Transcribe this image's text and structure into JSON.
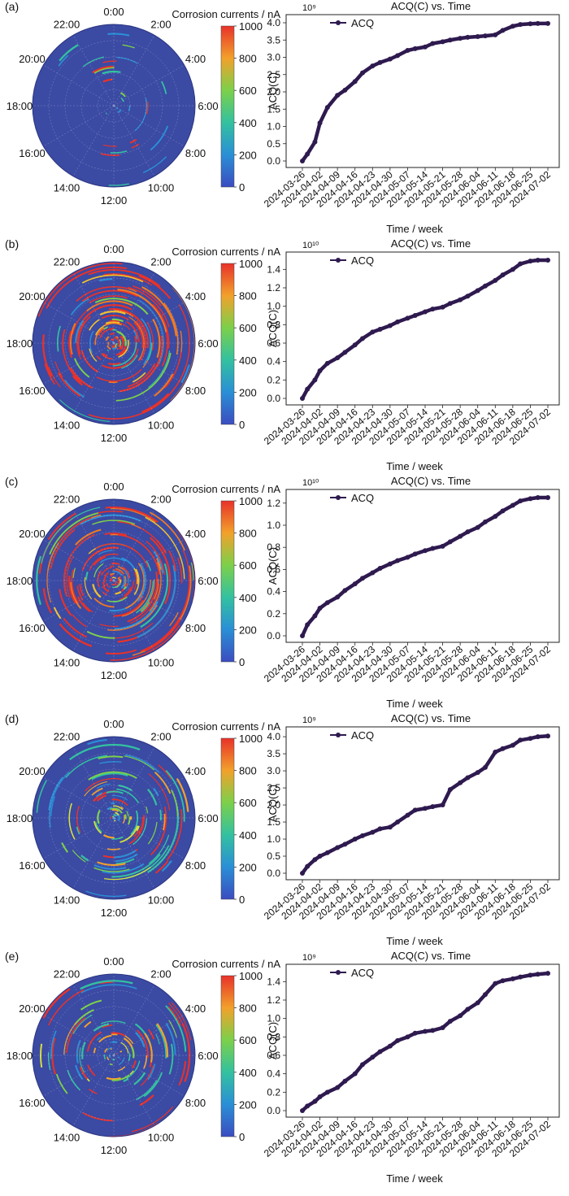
{
  "figure": {
    "panels": [
      {
        "label": "(a)",
        "polar": {
          "cbar_title": "Corrosion currents / nA",
          "cbar_ticks": [
            "0",
            "200",
            "400",
            "600",
            "800",
            "1000"
          ],
          "cbar_range": [
            0,
            1000
          ],
          "hour_labels": [
            "0:00",
            "2:00",
            "4:00",
            "6:00",
            "8:00",
            "10:00",
            "12:00",
            "14:00",
            "16:00",
            "18:00",
            "20:00",
            "22:00"
          ],
          "intensity": "low",
          "activity": [
            0.25,
            0.3,
            0.3,
            0.25,
            0.2,
            0.15,
            0.15,
            0.15,
            0.2,
            0.25,
            0.25,
            0.25
          ]
        },
        "line": {
          "title": "ACQ(C) vs. Time",
          "xlabel": "Time / week",
          "ylabel": "ACQ(C)",
          "exponent": "10⁹",
          "legend": "ACQ",
          "ylim": [
            0,
            4.0
          ],
          "yticks": [
            "0.0",
            "0.5",
            "1.0",
            "1.5",
            "2.0",
            "2.5",
            "3.0",
            "3.5",
            "4.0"
          ]
        }
      },
      {
        "label": "(b)",
        "polar": {
          "cbar_title": "Corrosion currents / nA",
          "cbar_ticks": [
            "0",
            "200",
            "400",
            "600",
            "800",
            "1000"
          ],
          "cbar_range": [
            0,
            1000
          ],
          "hour_labels": [
            "0:00",
            "2:00",
            "4:00",
            "6:00",
            "8:00",
            "10:00",
            "12:00",
            "14:00",
            "16:00",
            "18:00",
            "20:00",
            "22:00"
          ],
          "intensity": "high",
          "activity": [
            0.85,
            0.95,
            0.95,
            0.95,
            0.8,
            0.5,
            0.45,
            0.55,
            0.75,
            0.85,
            0.85,
            0.85
          ]
        },
        "line": {
          "title": "ACQ(C) vs. Time",
          "xlabel": "Time / week",
          "ylabel": "ACQ(C)",
          "exponent": "10¹⁰",
          "legend": "ACQ",
          "ylim": [
            0,
            1.5
          ],
          "yticks": [
            "0.0",
            "0.2",
            "0.4",
            "0.6",
            "0.8",
            "1.0",
            "1.2",
            "1.4"
          ]
        }
      },
      {
        "label": "(c)",
        "polar": {
          "cbar_title": "Corrosion currents / nA",
          "cbar_ticks": [
            "0",
            "200",
            "400",
            "600",
            "800",
            "1000"
          ],
          "cbar_range": [
            0,
            1000
          ],
          "hour_labels": [
            "0:00",
            "2:00",
            "4:00",
            "6:00",
            "8:00",
            "10:00",
            "12:00",
            "14:00",
            "16:00",
            "18:00",
            "20:00",
            "22:00"
          ],
          "intensity": "high",
          "activity": [
            0.8,
            0.9,
            0.9,
            0.85,
            0.7,
            0.45,
            0.4,
            0.5,
            0.7,
            0.8,
            0.8,
            0.8
          ]
        },
        "line": {
          "title": "ACQ(C) vs. Time",
          "xlabel": "Time / week",
          "ylabel": "ACQ(C)",
          "exponent": "10¹⁰",
          "legend": "ACQ",
          "ylim": [
            0,
            1.25
          ],
          "yticks": [
            "0.0",
            "0.2",
            "0.4",
            "0.6",
            "0.8",
            "1.0",
            "1.2"
          ]
        }
      },
      {
        "label": "(d)",
        "polar": {
          "cbar_title": "Corrosion currents / nA",
          "cbar_ticks": [
            "0",
            "200",
            "400",
            "600",
            "800",
            "1000"
          ],
          "cbar_range": [
            0,
            1000
          ],
          "hour_labels": [
            "0:00",
            "2:00",
            "4:00",
            "6:00",
            "8:00",
            "10:00",
            "12:00",
            "14:00",
            "16:00",
            "18:00",
            "20:00",
            "22:00"
          ],
          "intensity": "medium",
          "activity": [
            0.55,
            0.65,
            0.65,
            0.6,
            0.5,
            0.35,
            0.3,
            0.4,
            0.55,
            0.6,
            0.6,
            0.55
          ]
        },
        "line": {
          "title": "ACQ(C) vs. Time",
          "xlabel": "Time / week",
          "ylabel": "ACQ(C)",
          "exponent": "10⁹",
          "legend": "ACQ",
          "ylim": [
            0,
            4.05
          ],
          "yticks": [
            "0.0",
            "0.5",
            "1.0",
            "1.5",
            "2.0",
            "2.5",
            "3.0",
            "3.5",
            "4.0"
          ]
        }
      },
      {
        "label": "(e)",
        "polar": {
          "cbar_title": "Corrosion currents / nA",
          "cbar_ticks": [
            "0",
            "200",
            "400",
            "600",
            "800",
            "1000"
          ],
          "cbar_range": [
            0,
            1000
          ],
          "hour_labels": [
            "0:00",
            "2:00",
            "4:00",
            "6:00",
            "8:00",
            "10:00",
            "12:00",
            "14:00",
            "16:00",
            "18:00",
            "20:00",
            "22:00"
          ],
          "intensity": "medium",
          "activity": [
            0.5,
            0.6,
            0.6,
            0.5,
            0.4,
            0.3,
            0.25,
            0.35,
            0.45,
            0.5,
            0.5,
            0.5
          ]
        },
        "line": {
          "title": "ACQ(C) vs. Time",
          "xlabel": "Time / week",
          "ylabel": "ACQ(C)",
          "exponent": "10⁹",
          "legend": "ACQ",
          "ylim": [
            0,
            1.5
          ],
          "yticks": [
            "0.0",
            "0.2",
            "0.4",
            "0.6",
            "0.8",
            "1.0",
            "1.2",
            "1.4"
          ]
        }
      }
    ]
  },
  "chart_data": [
    {
      "type": "line",
      "title": "ACQ(C) vs. Time",
      "xlabel": "Time / week",
      "ylabel": "ACQ(C)",
      "y_multiplier": "1e9",
      "xticks": [
        "2024-03-26",
        "2024-04-02",
        "2024-04-09",
        "2024-04-16",
        "2024-04-23",
        "2024-04-30",
        "2024-05-07",
        "2024-05-14",
        "2024-05-21",
        "2024-05-28",
        "2024-06-04",
        "2024-06-11",
        "2024-06-18",
        "2024-06-25",
        "2024-07-02"
      ],
      "ylim": [
        0,
        4.0
      ],
      "legend": "top-left",
      "series": [
        {
          "name": "ACQ",
          "color": "#2e1a4f",
          "x": [
            "2024-03-26",
            "2024-03-28",
            "2024-03-31",
            "2024-04-02",
            "2024-04-05",
            "2024-04-09",
            "2024-04-12",
            "2024-04-16",
            "2024-04-19",
            "2024-04-23",
            "2024-04-26",
            "2024-04-30",
            "2024-05-03",
            "2024-05-07",
            "2024-05-10",
            "2024-05-14",
            "2024-05-17",
            "2024-05-21",
            "2024-05-24",
            "2024-05-28",
            "2024-05-31",
            "2024-06-04",
            "2024-06-07",
            "2024-06-11",
            "2024-06-14",
            "2024-06-18",
            "2024-06-21",
            "2024-06-25",
            "2024-06-28",
            "2024-07-02"
          ],
          "y": [
            0.0,
            0.2,
            0.55,
            1.1,
            1.55,
            1.9,
            2.05,
            2.3,
            2.55,
            2.75,
            2.85,
            2.95,
            3.05,
            3.2,
            3.25,
            3.3,
            3.4,
            3.45,
            3.5,
            3.55,
            3.58,
            3.6,
            3.62,
            3.65,
            3.78,
            3.9,
            3.95,
            3.97,
            3.98,
            3.98
          ]
        }
      ]
    },
    {
      "type": "line",
      "title": "ACQ(C) vs. Time",
      "xlabel": "Time / week",
      "ylabel": "ACQ(C)",
      "y_multiplier": "1e10",
      "xticks": [
        "2024-03-26",
        "2024-04-02",
        "2024-04-09",
        "2024-04-16",
        "2024-04-23",
        "2024-04-30",
        "2024-05-07",
        "2024-05-14",
        "2024-05-21",
        "2024-05-28",
        "2024-06-04",
        "2024-06-11",
        "2024-06-18",
        "2024-06-25",
        "2024-07-02"
      ],
      "ylim": [
        0,
        1.5
      ],
      "legend": "top-left",
      "series": [
        {
          "name": "ACQ",
          "color": "#2e1a4f",
          "x": [
            "2024-03-26",
            "2024-03-28",
            "2024-03-31",
            "2024-04-02",
            "2024-04-05",
            "2024-04-09",
            "2024-04-12",
            "2024-04-16",
            "2024-04-19",
            "2024-04-23",
            "2024-04-26",
            "2024-04-30",
            "2024-05-03",
            "2024-05-07",
            "2024-05-10",
            "2024-05-14",
            "2024-05-17",
            "2024-05-21",
            "2024-05-24",
            "2024-05-28",
            "2024-05-31",
            "2024-06-04",
            "2024-06-07",
            "2024-06-11",
            "2024-06-14",
            "2024-06-18",
            "2024-06-21",
            "2024-06-25",
            "2024-06-28",
            "2024-07-02"
          ],
          "y": [
            0.0,
            0.1,
            0.2,
            0.3,
            0.38,
            0.44,
            0.5,
            0.58,
            0.65,
            0.72,
            0.75,
            0.79,
            0.83,
            0.87,
            0.9,
            0.94,
            0.97,
            0.99,
            1.03,
            1.07,
            1.11,
            1.17,
            1.22,
            1.28,
            1.34,
            1.4,
            1.46,
            1.49,
            1.5,
            1.5
          ]
        }
      ]
    },
    {
      "type": "line",
      "title": "ACQ(C) vs. Time",
      "xlabel": "Time / week",
      "ylabel": "ACQ(C)",
      "y_multiplier": "1e10",
      "xticks": [
        "2024-03-26",
        "2024-04-02",
        "2024-04-09",
        "2024-04-16",
        "2024-04-23",
        "2024-04-30",
        "2024-05-07",
        "2024-05-14",
        "2024-05-21",
        "2024-05-28",
        "2024-06-04",
        "2024-06-11",
        "2024-06-18",
        "2024-06-25",
        "2024-07-02"
      ],
      "ylim": [
        0,
        1.25
      ],
      "legend": "top-left",
      "series": [
        {
          "name": "ACQ",
          "color": "#2e1a4f",
          "x": [
            "2024-03-26",
            "2024-03-28",
            "2024-03-31",
            "2024-04-02",
            "2024-04-05",
            "2024-04-09",
            "2024-04-12",
            "2024-04-16",
            "2024-04-19",
            "2024-04-23",
            "2024-04-26",
            "2024-04-30",
            "2024-05-03",
            "2024-05-07",
            "2024-05-10",
            "2024-05-14",
            "2024-05-17",
            "2024-05-21",
            "2024-05-24",
            "2024-05-28",
            "2024-05-31",
            "2024-06-04",
            "2024-06-07",
            "2024-06-11",
            "2024-06-14",
            "2024-06-18",
            "2024-06-21",
            "2024-06-25",
            "2024-06-28",
            "2024-07-02"
          ],
          "y": [
            0.0,
            0.1,
            0.18,
            0.25,
            0.3,
            0.35,
            0.41,
            0.47,
            0.52,
            0.57,
            0.61,
            0.65,
            0.68,
            0.71,
            0.74,
            0.77,
            0.79,
            0.81,
            0.85,
            0.9,
            0.94,
            0.98,
            1.03,
            1.08,
            1.13,
            1.18,
            1.22,
            1.24,
            1.25,
            1.25
          ]
        }
      ]
    },
    {
      "type": "line",
      "title": "ACQ(C) vs. Time",
      "xlabel": "Time / week",
      "ylabel": "ACQ(C)",
      "y_multiplier": "1e9",
      "xticks": [
        "2024-03-26",
        "2024-04-02",
        "2024-04-09",
        "2024-04-16",
        "2024-04-23",
        "2024-04-30",
        "2024-05-07",
        "2024-05-14",
        "2024-05-21",
        "2024-05-28",
        "2024-06-04",
        "2024-06-11",
        "2024-06-18",
        "2024-06-25",
        "2024-07-02"
      ],
      "ylim": [
        0,
        4.05
      ],
      "legend": "top-left",
      "series": [
        {
          "name": "ACQ",
          "color": "#2e1a4f",
          "x": [
            "2024-03-26",
            "2024-03-28",
            "2024-03-31",
            "2024-04-02",
            "2024-04-05",
            "2024-04-09",
            "2024-04-12",
            "2024-04-16",
            "2024-04-19",
            "2024-04-23",
            "2024-04-26",
            "2024-04-30",
            "2024-05-03",
            "2024-05-07",
            "2024-05-10",
            "2024-05-14",
            "2024-05-17",
            "2024-05-21",
            "2024-05-24",
            "2024-05-28",
            "2024-05-31",
            "2024-06-04",
            "2024-06-07",
            "2024-06-11",
            "2024-06-14",
            "2024-06-18",
            "2024-06-21",
            "2024-06-25",
            "2024-06-28",
            "2024-07-02"
          ],
          "y": [
            0.0,
            0.2,
            0.4,
            0.5,
            0.6,
            0.75,
            0.85,
            1.0,
            1.1,
            1.2,
            1.3,
            1.35,
            1.5,
            1.7,
            1.85,
            1.9,
            1.95,
            2.0,
            2.45,
            2.65,
            2.8,
            2.95,
            3.1,
            3.55,
            3.65,
            3.75,
            3.9,
            3.95,
            4.0,
            4.02
          ]
        }
      ]
    },
    {
      "type": "line",
      "title": "ACQ(C) vs. Time",
      "xlabel": "Time / week",
      "ylabel": "ACQ(C)",
      "y_multiplier": "1e9",
      "xticks": [
        "2024-03-26",
        "2024-04-02",
        "2024-04-09",
        "2024-04-16",
        "2024-04-23",
        "2024-04-30",
        "2024-05-07",
        "2024-05-14",
        "2024-05-21",
        "2024-05-28",
        "2024-06-04",
        "2024-06-11",
        "2024-06-18",
        "2024-06-25",
        "2024-07-02"
      ],
      "ylim": [
        0,
        1.5
      ],
      "legend": "top-left",
      "series": [
        {
          "name": "ACQ",
          "color": "#2e1a4f",
          "x": [
            "2024-03-26",
            "2024-03-28",
            "2024-03-31",
            "2024-04-02",
            "2024-04-05",
            "2024-04-09",
            "2024-04-12",
            "2024-04-16",
            "2024-04-19",
            "2024-04-23",
            "2024-04-26",
            "2024-04-30",
            "2024-05-03",
            "2024-05-07",
            "2024-05-10",
            "2024-05-14",
            "2024-05-17",
            "2024-05-21",
            "2024-05-24",
            "2024-05-28",
            "2024-05-31",
            "2024-06-04",
            "2024-06-07",
            "2024-06-11",
            "2024-06-14",
            "2024-06-18",
            "2024-06-21",
            "2024-06-25",
            "2024-06-28",
            "2024-07-02"
          ],
          "y": [
            0.0,
            0.05,
            0.1,
            0.15,
            0.2,
            0.25,
            0.32,
            0.4,
            0.5,
            0.58,
            0.64,
            0.7,
            0.76,
            0.8,
            0.84,
            0.86,
            0.87,
            0.9,
            0.97,
            1.03,
            1.1,
            1.17,
            1.26,
            1.38,
            1.41,
            1.43,
            1.45,
            1.47,
            1.48,
            1.49
          ]
        }
      ]
    }
  ]
}
